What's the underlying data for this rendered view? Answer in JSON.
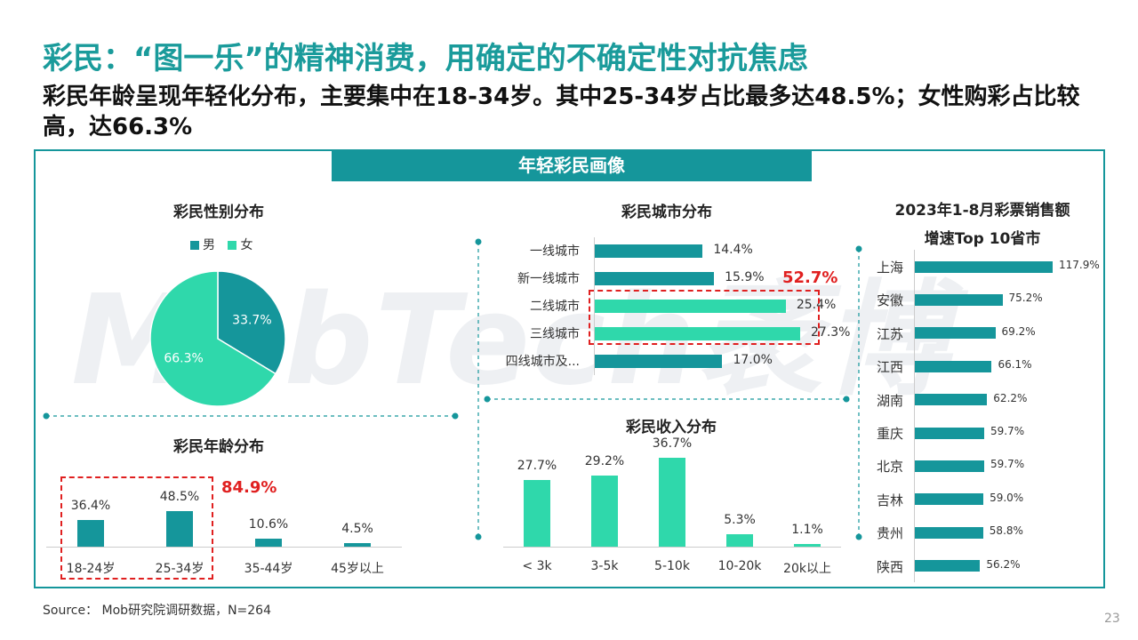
{
  "title": "彩民：“图一乐”的精神消费，用确定的不确定性对抗焦虑",
  "subtitle": "彩民年龄呈现年轻化分布，主要集中在18-34岁。其中25-34岁占比最多达48.5%；女性购彩占比较高，达66.3%",
  "banner": "年轻彩民画像",
  "watermark": "MobTech袤博",
  "source": "Source： Mob研究院调研数据，N=264",
  "page_number": "23",
  "colors": {
    "teal": "#15969b",
    "mint": "#2fd8ab",
    "red": "#e02020"
  },
  "chart_data": [
    {
      "type": "pie",
      "title": "彩民性别分布",
      "legend_position": "top",
      "labels": [
        "男",
        "女"
      ],
      "values": [
        33.7,
        66.3
      ],
      "value_labels": [
        "33.7%",
        "66.3%"
      ],
      "colors": [
        "#15969b",
        "#2fd8ab"
      ]
    },
    {
      "type": "bar",
      "title": "彩民年龄分布",
      "categories": [
        "18-24岁",
        "25-34岁",
        "35-44岁",
        "45岁以上"
      ],
      "values": [
        36.4,
        48.5,
        10.6,
        4.5
      ],
      "value_labels": [
        "36.4%",
        "48.5%",
        "10.6%",
        "4.5%"
      ],
      "highlight": {
        "categories": [
          "18-24岁",
          "25-34岁"
        ],
        "label": "84.9%"
      },
      "color": "#15969b"
    },
    {
      "type": "bar",
      "orientation": "horizontal",
      "title": "彩民城市分布",
      "categories": [
        "一线城市",
        "新一线城市",
        "二线城市",
        "三线城市",
        "四线城市及..."
      ],
      "values": [
        14.4,
        15.9,
        25.4,
        27.3,
        17.0
      ],
      "value_labels": [
        "14.4%",
        "15.9%",
        "25.4%",
        "27.3%",
        "17.0%"
      ],
      "highlight": {
        "categories": [
          "二线城市",
          "三线城市"
        ],
        "label": "52.7%"
      },
      "colors": [
        "#15969b",
        "#15969b",
        "#2fd8ab",
        "#2fd8ab",
        "#15969b"
      ]
    },
    {
      "type": "bar",
      "title": "彩民收入分布",
      "categories": [
        "< 3k",
        "3-5k",
        "5-10k",
        "10-20k",
        "20k以上"
      ],
      "values": [
        27.7,
        29.2,
        36.7,
        5.3,
        1.1
      ],
      "value_labels": [
        "27.7%",
        "29.2%",
        "36.7%",
        "5.3%",
        "1.1%"
      ],
      "color": "#2fd8ab"
    },
    {
      "type": "bar",
      "orientation": "horizontal",
      "title_lines": [
        "2023年1-8月彩票销售额",
        "增速Top 10省市"
      ],
      "categories": [
        "上海",
        "安徽",
        "江苏",
        "江西",
        "湖南",
        "重庆",
        "北京",
        "吉林",
        "贵州",
        "陕西"
      ],
      "values": [
        117.9,
        75.2,
        69.2,
        66.1,
        62.2,
        59.7,
        59.7,
        59.0,
        58.8,
        56.2
      ],
      "value_labels": [
        "117.9%",
        "75.2%",
        "69.2%",
        "66.1%",
        "62.2%",
        "59.7%",
        "59.7%",
        "59.0%",
        "58.8%",
        "56.2%"
      ],
      "color": "#15969b"
    }
  ]
}
